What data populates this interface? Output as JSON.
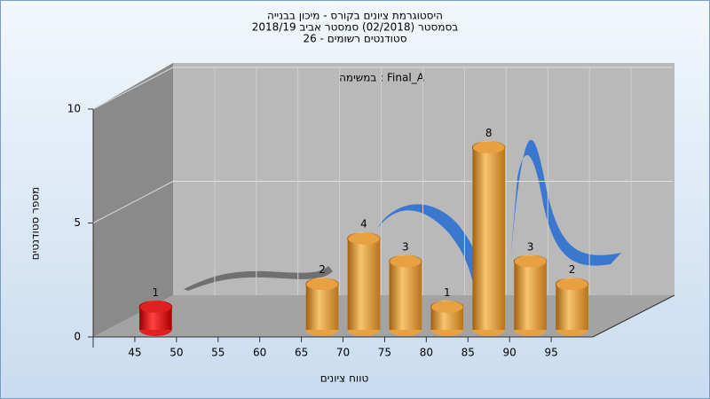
{
  "chart_data": {
    "type": "histogram",
    "title": "היסטוגרמת ציונים בקורס - מיכון בבנייה",
    "subtitle": "בסמסטר  (02/2018)  סמסטר אביב 2018/19",
    "subtitle2": "סטודנטים רשומים - 26",
    "annotation": "במשימה : Final_A",
    "x_label": "טווח ציונים",
    "y_label": "מספר סטודנטים",
    "bins": [
      45,
      50,
      55,
      60,
      65,
      70,
      75,
      80,
      85,
      90,
      95,
      100
    ],
    "values": [
      1,
      0,
      0,
      0,
      2,
      4,
      3,
      1,
      8,
      3,
      2
    ],
    "colors": [
      "#e02020",
      "#e8a040",
      "#e8a040",
      "#e8a040",
      "#e8a040",
      "#e8a040",
      "#e8a040",
      "#e8a040",
      "#e8a040",
      "#e8a040",
      "#e8a040"
    ],
    "xlim": [
      40,
      100
    ],
    "xticks": [
      45,
      50,
      55,
      60,
      65,
      70,
      75,
      80,
      85,
      90,
      95
    ],
    "ylim": [
      0,
      10
    ],
    "yticks": [
      0,
      5,
      10
    ],
    "grid": true
  }
}
